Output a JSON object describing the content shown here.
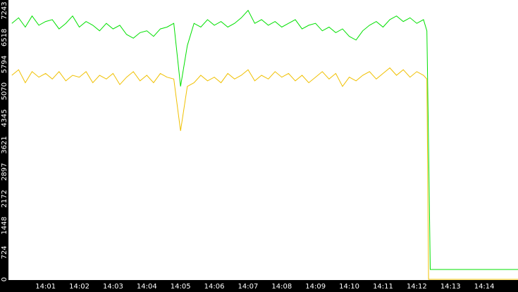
{
  "chart_data": {
    "type": "line",
    "x": [
      840.0,
      840.2,
      840.4,
      840.6,
      840.8,
      841.0,
      841.2,
      841.4,
      841.6,
      841.8,
      842.0,
      842.2,
      842.4,
      842.6,
      842.8,
      843.0,
      843.2,
      843.4,
      843.6,
      843.8,
      844.0,
      844.2,
      844.4,
      844.6,
      844.8,
      845.0,
      845.2,
      845.4,
      845.6,
      845.8,
      846.0,
      846.2,
      846.4,
      846.6,
      846.8,
      847.0,
      847.2,
      847.4,
      847.6,
      847.8,
      848.0,
      848.2,
      848.4,
      848.6,
      848.8,
      849.0,
      849.2,
      849.4,
      849.6,
      849.8,
      850.0,
      850.2,
      850.4,
      850.6,
      850.8,
      851.0,
      851.2,
      851.4,
      851.6,
      851.8,
      852.0,
      852.2,
      852.3,
      852.35,
      852.4,
      855.0
    ],
    "series": [
      {
        "color": "#00e000",
        "values": [
          6900,
          7050,
          6800,
          7100,
          6850,
          6950,
          7000,
          6750,
          6900,
          7100,
          6800,
          6950,
          6850,
          6700,
          6900,
          6750,
          6850,
          6600,
          6500,
          6650,
          6700,
          6550,
          6750,
          6800,
          6900,
          5200,
          6300,
          6900,
          6800,
          7000,
          6850,
          6950,
          6800,
          6900,
          7050,
          7250,
          6900,
          7000,
          6850,
          6950,
          6800,
          6900,
          7000,
          6750,
          6850,
          6900,
          6700,
          6800,
          6650,
          6750,
          6550,
          6450,
          6700,
          6850,
          6950,
          6800,
          7000,
          7100,
          6950,
          7050,
          6900,
          7000,
          6700,
          3600,
          265,
          265
        ]
      },
      {
        "color": "#f0c000",
        "values": [
          5500,
          5650,
          5300,
          5600,
          5450,
          5550,
          5400,
          5600,
          5350,
          5500,
          5450,
          5600,
          5300,
          5500,
          5400,
          5550,
          5250,
          5450,
          5600,
          5350,
          5500,
          5300,
          5550,
          5450,
          5400,
          4000,
          5200,
          5300,
          5500,
          5350,
          5450,
          5300,
          5550,
          5400,
          5500,
          5650,
          5350,
          5500,
          5400,
          5600,
          5450,
          5550,
          5350,
          5500,
          5300,
          5450,
          5600,
          5400,
          5550,
          5200,
          5450,
          5350,
          5500,
          5600,
          5400,
          5550,
          5700,
          5500,
          5650,
          5450,
          5600,
          5500,
          5400,
          0,
          0,
          0
        ]
      }
    ],
    "xlim": [
      839.9,
      855.0
    ],
    "xticks": [
      {
        "value": 841,
        "label": "14:01"
      },
      {
        "value": 842,
        "label": "14:02"
      },
      {
        "value": 843,
        "label": "14:03"
      },
      {
        "value": 844,
        "label": "14:04"
      },
      {
        "value": 845,
        "label": "14:05"
      },
      {
        "value": 846,
        "label": "14:06"
      },
      {
        "value": 847,
        "label": "14:07"
      },
      {
        "value": 848,
        "label": "14:08"
      },
      {
        "value": 849,
        "label": "14:09"
      },
      {
        "value": 850,
        "label": "14:10"
      },
      {
        "value": 851,
        "label": "14:11"
      },
      {
        "value": 852,
        "label": "14:12"
      },
      {
        "value": 853,
        "label": "14:13"
      },
      {
        "value": 854,
        "label": "14:14"
      }
    ],
    "ylim": [
      0,
      7530
    ],
    "yticks": [
      0,
      724,
      1448,
      2172,
      2897,
      3621,
      4345,
      5070,
      5794,
      6518,
      7243
    ]
  }
}
